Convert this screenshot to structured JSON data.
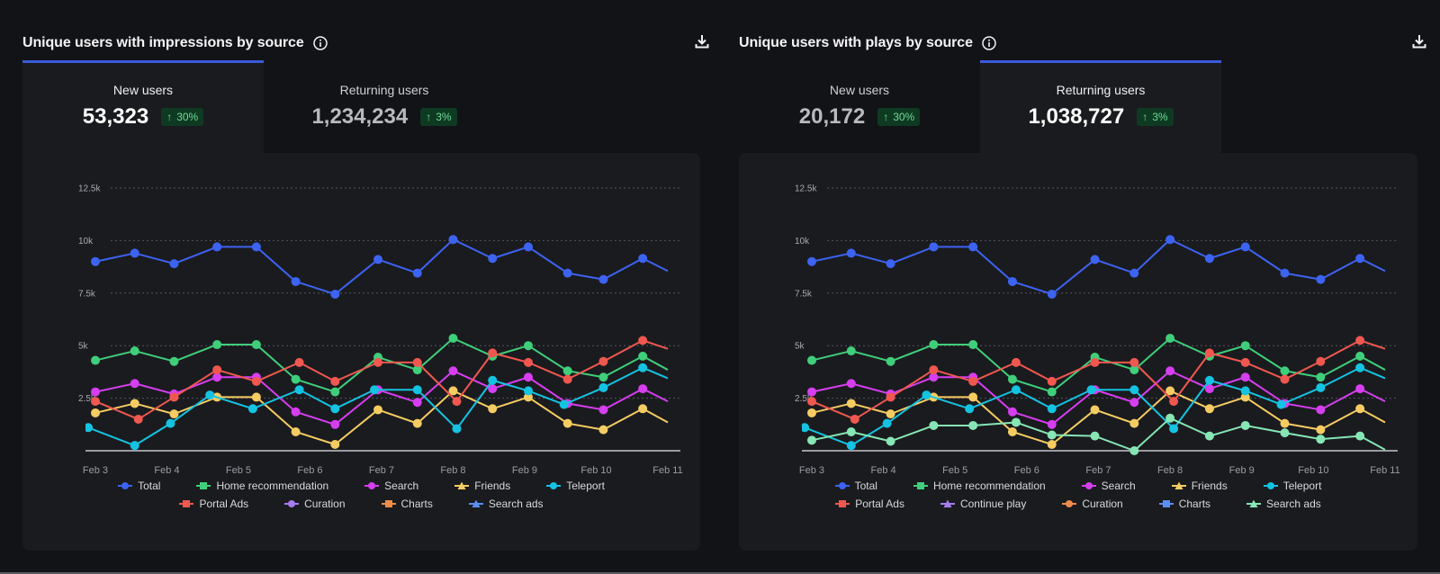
{
  "panels": [
    {
      "title": "Unique users with impressions by source",
      "info_icon": "info-icon",
      "download_icon": "download-icon",
      "active_tab": 0,
      "tabs": [
        {
          "label": "New users",
          "value": "53,323",
          "change": "30%",
          "direction": "up"
        },
        {
          "label": "Returning users",
          "value": "1,234,234",
          "change": "3%",
          "direction": "up"
        }
      ],
      "legend_rows": [
        [
          "Total",
          "Home recommendation",
          "Search",
          "Friends",
          "Teleport"
        ],
        [
          "Portal Ads",
          "Curation",
          "Charts",
          "Search ads"
        ]
      ]
    },
    {
      "title": "Unique users with plays by source",
      "info_icon": "info-icon",
      "download_icon": "download-icon",
      "active_tab": 1,
      "tabs": [
        {
          "label": "New users",
          "value": "20,172",
          "change": "30%",
          "direction": "up"
        },
        {
          "label": "Returning users",
          "value": "1,038,727",
          "change": "3%",
          "direction": "up"
        }
      ],
      "legend_rows": [
        [
          "Total",
          "Home recommendation",
          "Search",
          "Friends",
          "Teleport"
        ],
        [
          "Portal Ads",
          "Continue play",
          "Curation",
          "Charts",
          "Search ads"
        ]
      ]
    }
  ],
  "chart_data": [
    {
      "type": "line",
      "title": "Unique users with impressions by source",
      "xlabel": "",
      "ylabel": "",
      "categories": [
        "Feb 3",
        "Feb 4",
        "Feb 5",
        "Feb 6",
        "Feb 7",
        "Feb 8",
        "Feb 9",
        "Feb 10",
        "Feb 11"
      ],
      "yticks": [
        "2.5k",
        "5k",
        "7.5k",
        "10k",
        "12.5k"
      ],
      "ytick_values": [
        2500,
        5000,
        7500,
        10000,
        12500
      ],
      "ylim": [
        0,
        12500
      ],
      "grid": true,
      "legend_position": "bottom",
      "series": [
        {
          "name": "Total",
          "color": "#3d63f2",
          "marker": "circle",
          "x": [
            0,
            0.55,
            1.1,
            1.7,
            2.25,
            2.8,
            3.35,
            3.95,
            4.5,
            5.0,
            5.55,
            6.05,
            6.6,
            7.1,
            7.65,
            8.0
          ],
          "y": [
            9000,
            9400,
            8900,
            9700,
            9700,
            8050,
            7450,
            9100,
            8450,
            10050,
            9150,
            9700,
            8450,
            8150,
            9150,
            8550
          ]
        },
        {
          "name": "Home recommendation",
          "color": "#3fcf7a",
          "marker": "square",
          "x": [
            0,
            0.55,
            1.1,
            1.7,
            2.25,
            2.8,
            3.35,
            3.95,
            4.5,
            5.0,
            5.55,
            6.05,
            6.6,
            7.1,
            7.65,
            8.0
          ],
          "y": [
            4300,
            4750,
            4250,
            5050,
            5050,
            3400,
            2800,
            4450,
            3850,
            5350,
            4500,
            5000,
            3800,
            3500,
            4500,
            3850
          ]
        },
        {
          "name": "Search",
          "color": "#d63ef0",
          "marker": "circle",
          "x": [
            0,
            0.55,
            1.1,
            1.7,
            2.25,
            2.8,
            3.35,
            3.95,
            4.5,
            5.0,
            5.55,
            6.05,
            6.6,
            7.1,
            7.65,
            8.0
          ],
          "y": [
            2800,
            3200,
            2700,
            3500,
            3500,
            1850,
            1250,
            2900,
            2300,
            3800,
            2950,
            3500,
            2250,
            1950,
            2950,
            2350
          ]
        },
        {
          "name": "Friends",
          "color": "#f5cc62",
          "marker": "triangle",
          "x": [
            0,
            0.55,
            1.1,
            1.7,
            2.25,
            2.8,
            3.35,
            3.95,
            4.5,
            5.0,
            5.55,
            6.05,
            6.6,
            7.1,
            7.65,
            8.0
          ],
          "y": [
            1800,
            2250,
            1750,
            2550,
            2550,
            900,
            300,
            1950,
            1300,
            2850,
            2000,
            2550,
            1300,
            1000,
            2000,
            1350
          ]
        },
        {
          "name": "Teleport",
          "color": "#14c3e2",
          "marker": "circle",
          "x": [
            -0.1,
            0.55,
            1.05,
            1.6,
            2.2,
            2.85,
            3.35,
            3.9,
            4.5,
            5.05,
            5.55,
            6.05,
            6.55,
            7.1,
            7.65,
            8.0
          ],
          "y": [
            1100,
            250,
            1300,
            2650,
            2000,
            2900,
            2000,
            2900,
            2900,
            1050,
            3350,
            2850,
            2200,
            3000,
            3950,
            3450
          ]
        },
        {
          "name": "Portal Ads",
          "color": "#f0584f",
          "marker": "square",
          "x": [
            0,
            0.6,
            1.1,
            1.7,
            2.25,
            2.85,
            3.35,
            3.95,
            4.5,
            5.05,
            5.55,
            6.05,
            6.6,
            7.1,
            7.65,
            8.0
          ],
          "y": [
            2350,
            1500,
            2550,
            3850,
            3300,
            4200,
            3300,
            4200,
            4200,
            2350,
            4650,
            4200,
            3400,
            4250,
            5250,
            4850
          ]
        }
      ]
    },
    {
      "type": "line",
      "title": "Unique users with plays by source",
      "xlabel": "",
      "ylabel": "",
      "categories": [
        "Feb 3",
        "Feb 4",
        "Feb 5",
        "Feb 6",
        "Feb 7",
        "Feb 8",
        "Feb 9",
        "Feb 10",
        "Feb 11"
      ],
      "yticks": [
        "2.5k",
        "5k",
        "7.5k",
        "10k",
        "12.5k"
      ],
      "ytick_values": [
        2500,
        5000,
        7500,
        10000,
        12500
      ],
      "ylim": [
        0,
        12500
      ],
      "grid": true,
      "legend_position": "bottom",
      "series": [
        {
          "name": "Total",
          "color": "#3d63f2",
          "marker": "circle",
          "x": [
            0,
            0.55,
            1.1,
            1.7,
            2.25,
            2.8,
            3.35,
            3.95,
            4.5,
            5.0,
            5.55,
            6.05,
            6.6,
            7.1,
            7.65,
            8.0
          ],
          "y": [
            9000,
            9400,
            8900,
            9700,
            9700,
            8050,
            7450,
            9100,
            8450,
            10050,
            9150,
            9700,
            8450,
            8150,
            9150,
            8550
          ]
        },
        {
          "name": "Home recommendation",
          "color": "#3fcf7a",
          "marker": "square",
          "x": [
            0,
            0.55,
            1.1,
            1.7,
            2.25,
            2.8,
            3.35,
            3.95,
            4.5,
            5.0,
            5.55,
            6.05,
            6.6,
            7.1,
            7.65,
            8.0
          ],
          "y": [
            4300,
            4750,
            4250,
            5050,
            5050,
            3400,
            2800,
            4450,
            3850,
            5350,
            4500,
            5000,
            3800,
            3500,
            4500,
            3850
          ]
        },
        {
          "name": "Search",
          "color": "#d63ef0",
          "marker": "circle",
          "x": [
            0,
            0.55,
            1.1,
            1.7,
            2.25,
            2.8,
            3.35,
            3.95,
            4.5,
            5.0,
            5.55,
            6.05,
            6.6,
            7.1,
            7.65,
            8.0
          ],
          "y": [
            2800,
            3200,
            2700,
            3500,
            3500,
            1850,
            1250,
            2900,
            2300,
            3800,
            2950,
            3500,
            2250,
            1950,
            2950,
            2350
          ]
        },
        {
          "name": "Friends",
          "color": "#f5cc62",
          "marker": "triangle",
          "x": [
            0,
            0.55,
            1.1,
            1.7,
            2.25,
            2.8,
            3.35,
            3.95,
            4.5,
            5.0,
            5.55,
            6.05,
            6.6,
            7.1,
            7.65,
            8.0
          ],
          "y": [
            1800,
            2250,
            1750,
            2550,
            2550,
            900,
            300,
            1950,
            1300,
            2850,
            2000,
            2550,
            1300,
            1000,
            2000,
            1350
          ]
        },
        {
          "name": "Teleport",
          "color": "#14c3e2",
          "marker": "circle",
          "x": [
            -0.1,
            0.55,
            1.05,
            1.6,
            2.2,
            2.85,
            3.35,
            3.9,
            4.5,
            5.05,
            5.55,
            6.05,
            6.55,
            7.1,
            7.65,
            8.0
          ],
          "y": [
            1100,
            250,
            1300,
            2650,
            2000,
            2900,
            2000,
            2900,
            2900,
            1050,
            3350,
            2850,
            2200,
            3000,
            3950,
            3450
          ]
        },
        {
          "name": "Portal Ads",
          "color": "#f0584f",
          "marker": "square",
          "x": [
            0,
            0.6,
            1.1,
            1.7,
            2.25,
            2.85,
            3.35,
            3.95,
            4.5,
            5.05,
            5.55,
            6.05,
            6.6,
            7.1,
            7.65,
            8.0
          ],
          "y": [
            2350,
            1500,
            2550,
            3850,
            3300,
            4200,
            3300,
            4200,
            4200,
            2350,
            4650,
            4200,
            3400,
            4250,
            5250,
            4850
          ]
        },
        {
          "name": "Search ads",
          "color": "#86e6b4",
          "marker": "triangle",
          "x": [
            0,
            0.55,
            1.1,
            1.7,
            2.25,
            2.85,
            3.35,
            3.95,
            4.5,
            5.0,
            5.55,
            6.05,
            6.6,
            7.1,
            7.65,
            8.0
          ],
          "y": [
            500,
            900,
            450,
            1200,
            1200,
            1350,
            750,
            700,
            0,
            1550,
            700,
            1200,
            850,
            550,
            700,
            50
          ]
        }
      ]
    }
  ],
  "legend_colors": {
    "Total": "#3d63f2",
    "Home recommendation": "#3fcf7a",
    "Search": "#d63ef0",
    "Friends": "#f5cc62",
    "Teleport": "#14c3e2",
    "Portal Ads": "#f0584f",
    "Curation": "#a77cf0",
    "Continue play": "#a77cf0",
    "Charts": "#f08c4a",
    "Search ads": "#5b8ef5"
  },
  "legend_colors_right": {
    "Curation": "#f08c4a",
    "Charts": "#5b8ef5",
    "Search ads": "#86e6b4"
  },
  "legend_markers": {
    "Total": "circle",
    "Home recommendation": "square",
    "Search": "circle",
    "Friends": "triangle",
    "Teleport": "circle",
    "Portal Ads": "square",
    "Curation": "circle",
    "Continue play": "triangle",
    "Charts": "square",
    "Search ads": "triangle"
  },
  "colors": {
    "accent": "#3b5bdb",
    "badge_bg": "#0e3a22",
    "badge_text": "#6fdc96"
  }
}
